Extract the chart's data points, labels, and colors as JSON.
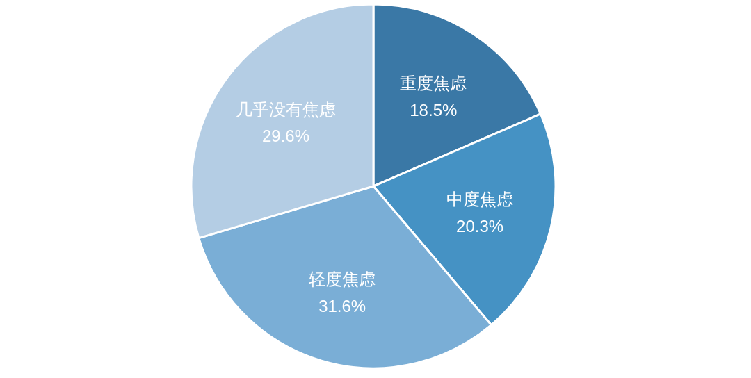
{
  "chart_data": {
    "type": "pie",
    "categories": [
      "重度焦虑",
      "中度焦虑",
      "轻度焦虑",
      "几乎没有焦虑"
    ],
    "values": [
      18.5,
      20.3,
      31.6,
      29.6
    ],
    "colors": [
      "#3a78a6",
      "#4592c4",
      "#7aaed6",
      "#b4cde4"
    ],
    "value_labels": [
      "18.5%",
      "20.3%",
      "31.6%",
      "29.6%"
    ]
  }
}
